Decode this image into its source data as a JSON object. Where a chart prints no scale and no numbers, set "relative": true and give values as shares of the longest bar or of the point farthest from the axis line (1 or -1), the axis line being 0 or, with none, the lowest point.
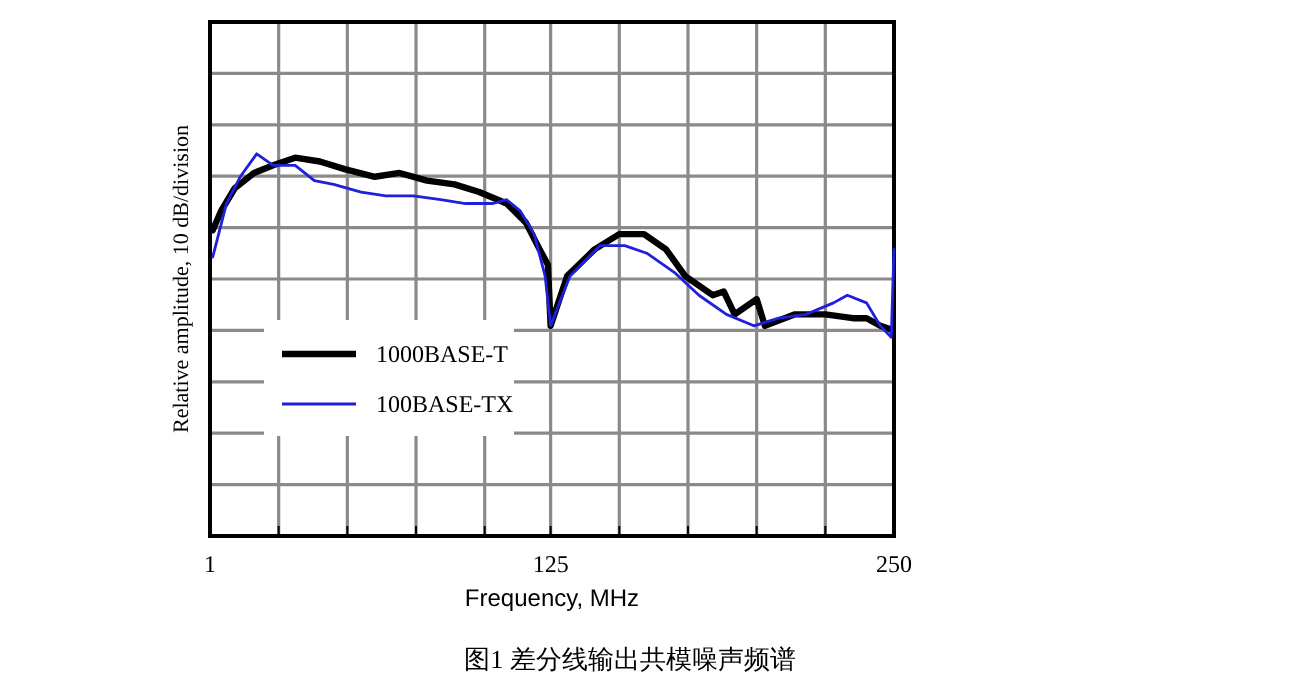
{
  "chart_data": {
    "type": "line",
    "relative": true,
    "xlabel": "Frequency, MHz",
    "ylabel": "Relative amplitude, 10 dB/division",
    "xlim": [
      1,
      250
    ],
    "xticks": [
      1,
      {
        "value": 26,
        "label": null
      },
      {
        "value": 51,
        "label": null
      },
      {
        "value": 76,
        "label": null
      },
      {
        "value": 101,
        "label": null
      },
      125,
      {
        "value": 150,
        "label": null
      },
      {
        "value": 175,
        "label": null
      },
      {
        "value": 200,
        "label": null
      },
      {
        "value": 225,
        "label": null
      },
      250
    ],
    "grid": true,
    "legend": "left",
    "tick_labels": "x",
    "line_style": "solid",
    "annotations": [
      "图1 差分线输出共模噪声频谱"
    ],
    "series": [
      {
        "name": "1000BASE-T",
        "color": "#000000",
        "x": [
          2,
          5,
          10,
          17,
          24,
          32,
          41,
          50,
          61,
          70,
          80,
          90,
          99,
          109,
          116,
          121,
          124,
          125,
          131,
          141,
          150,
          159,
          167,
          174,
          184,
          188,
          192,
          200,
          203,
          214,
          225,
          235,
          240,
          245,
          249
        ],
        "values": [
          0.8,
          0.85,
          0.91,
          0.95,
          0.97,
          0.99,
          0.98,
          0.96,
          0.94,
          0.95,
          0.93,
          0.92,
          0.9,
          0.87,
          0.82,
          0.75,
          0.71,
          0.55,
          0.68,
          0.75,
          0.79,
          0.79,
          0.75,
          0.68,
          0.63,
          0.64,
          0.58,
          0.62,
          0.55,
          0.58,
          0.58,
          0.57,
          0.57,
          0.55,
          0.54
        ]
      },
      {
        "name": "100BASE-TX",
        "color": "#1f1fdc",
        "x": [
          2,
          7,
          12,
          18,
          24,
          32,
          39,
          46,
          56,
          65,
          75,
          85,
          94,
          104,
          109,
          114,
          119,
          123,
          125,
          132,
          143,
          152,
          160,
          170,
          179,
          189,
          199,
          208,
          218,
          228,
          233,
          240,
          245,
          249,
          250
        ],
        "values": [
          0.73,
          0.87,
          0.94,
          1,
          0.97,
          0.97,
          0.93,
          0.92,
          0.9,
          0.89,
          0.89,
          0.88,
          0.87,
          0.87,
          0.88,
          0.85,
          0.79,
          0.68,
          0.55,
          0.68,
          0.76,
          0.76,
          0.74,
          0.69,
          0.63,
          0.58,
          0.55,
          0.57,
          0.58,
          0.61,
          0.63,
          0.61,
          0.55,
          0.52,
          0.75
        ]
      }
    ]
  }
}
